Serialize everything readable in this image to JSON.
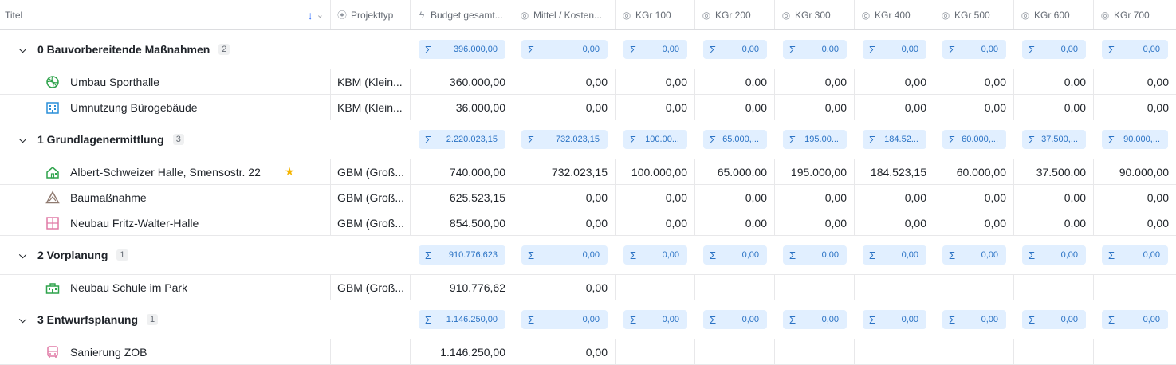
{
  "columns": {
    "title": "Titel",
    "projekttyp": "Projekttyp",
    "budget": "Budget gesamt...",
    "mittel": "Mittel / Kosten...",
    "kgr": [
      "KGr 100",
      "KGr 200",
      "KGr 300",
      "KGr 400",
      "KGr 500",
      "KGr 600",
      "KGr 700"
    ]
  },
  "groups": [
    {
      "name": "0 Bauvorbereitende Maßnahmen",
      "count": "2",
      "sums": [
        "396.000,00",
        "0,00",
        "0,00",
        "0,00",
        "0,00",
        "0,00",
        "0,00",
        "0,00",
        "0,00"
      ],
      "rows": [
        {
          "title": "Umbau Sporthalle",
          "icon": "sports-ball-icon",
          "type": "KBM (Klein...",
          "budget": "360.000,00",
          "mittel": "0,00",
          "kgr": [
            "0,00",
            "0,00",
            "0,00",
            "0,00",
            "0,00",
            "0,00",
            "0,00"
          ]
        },
        {
          "title": "Umnutzung Bürogebäude",
          "icon": "office-building-icon",
          "type": "KBM (Klein...",
          "budget": "36.000,00",
          "mittel": "0,00",
          "kgr": [
            "0,00",
            "0,00",
            "0,00",
            "0,00",
            "0,00",
            "0,00",
            "0,00"
          ]
        }
      ]
    },
    {
      "name": "1 Grundlagenermittlung",
      "count": "3",
      "sums": [
        "2.220.023,15",
        "732.023,15",
        "100.00...",
        "65.000,...",
        "195.00...",
        "184.52...",
        "60.000,...",
        "37.500,...",
        "90.000,..."
      ],
      "rows": [
        {
          "title": "Albert-Schweizer Halle, Smensostr. 22",
          "icon": "house-icon",
          "type": "GBM (Groß...",
          "budget": "740.000,00",
          "mittel": "732.023,15",
          "kgr": [
            "100.000,00",
            "65.000,00",
            "195.000,00",
            "184.523,15",
            "60.000,00",
            "37.500,00",
            "90.000,00"
          ],
          "starred": true
        },
        {
          "title": "Baumaßnahme",
          "icon": "construction-icon",
          "type": "GBM (Groß...",
          "budget": "625.523,15",
          "mittel": "0,00",
          "kgr": [
            "0,00",
            "0,00",
            "0,00",
            "0,00",
            "0,00",
            "0,00",
            "0,00"
          ]
        },
        {
          "title": "Neubau Fritz-Walter-Halle",
          "icon": "floorplan-icon",
          "type": "GBM (Groß...",
          "budget": "854.500,00",
          "mittel": "0,00",
          "kgr": [
            "0,00",
            "0,00",
            "0,00",
            "0,00",
            "0,00",
            "0,00",
            "0,00"
          ]
        }
      ]
    },
    {
      "name": "2 Vorplanung",
      "count": "1",
      "sums": [
        "910.776,623",
        "0,00",
        "0,00",
        "0,00",
        "0,00",
        "0,00",
        "0,00",
        "0,00",
        "0,00"
      ],
      "rows": [
        {
          "title": "Neubau Schule im Park",
          "icon": "school-icon",
          "type": "GBM (Groß...",
          "budget": "910.776,62",
          "mittel": "0,00",
          "kgr": [
            "",
            "",
            "",
            "",
            "",
            "",
            ""
          ]
        }
      ]
    },
    {
      "name": "3 Entwurfsplanung",
      "count": "1",
      "sums": [
        "1.146.250,00",
        "0,00",
        "0,00",
        "0,00",
        "0,00",
        "0,00",
        "0,00",
        "0,00",
        "0,00"
      ],
      "rows": [
        {
          "title": "Sanierung ZOB",
          "icon": "bus-icon",
          "type": "",
          "budget": "1.146.250,00",
          "mittel": "0,00",
          "kgr": [
            "",
            "",
            "",
            "",
            "",
            "",
            ""
          ]
        }
      ]
    }
  ],
  "colors": {
    "accent": "#3370ff",
    "sum_bg": "#e1efff",
    "sum_text": "#2a72c4",
    "star": "#f5b400"
  }
}
